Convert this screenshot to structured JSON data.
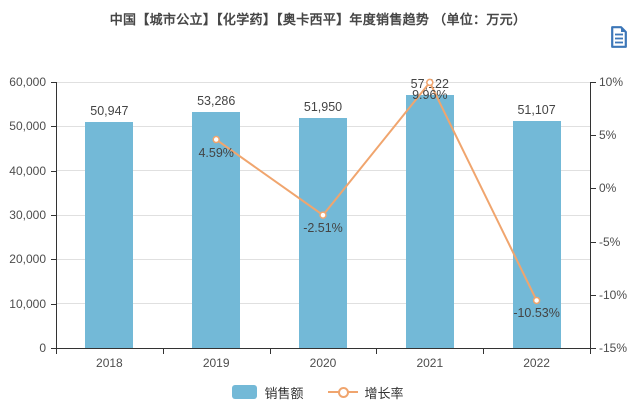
{
  "title": "中国【城市公立】【化学药】【奥卡西平】年度销售趋势 （单位：万元）",
  "toolbox": {
    "data_view_icon": "data-view"
  },
  "legend": [
    {
      "label": "销售额",
      "type": "bar"
    },
    {
      "label": "增长率",
      "type": "line"
    }
  ],
  "colors": {
    "bar": "#73b9d7",
    "line": "#f0a56e",
    "point_fill": "#ffffff",
    "grid": "#e0e0e0",
    "axis": "#333333",
    "axis_label": "#4d4d4d",
    "value_label": "#444444",
    "icon": "#3d77b8"
  },
  "chart_data": {
    "type": "bar+line",
    "title": "中国【城市公立】【化学药】【奥卡西平】年度销售趋势 （单位：万元）",
    "categories": [
      "2018",
      "2019",
      "2020",
      "2021",
      "2022"
    ],
    "series": [
      {
        "name": "销售额",
        "type": "bar",
        "values": [
          50947,
          53286,
          51950,
          57122,
          51107
        ],
        "labels": [
          "50,947",
          "53,286",
          "51,950",
          "57,122",
          "51,107"
        ],
        "color": "#73b9d7",
        "axis": "left"
      },
      {
        "name": "增长率",
        "type": "line",
        "values": [
          null,
          4.59,
          -2.51,
          9.96,
          -10.53
        ],
        "labels": [
          null,
          "4.59%",
          "-2.51%",
          "9.96%",
          "-10.53%"
        ],
        "color": "#f0a56e",
        "axis": "right"
      }
    ],
    "y_left": {
      "min": 0,
      "max": 60000,
      "step": 10000,
      "ticks": [
        {
          "v": 0,
          "label": "0"
        },
        {
          "v": 10000,
          "label": "10,000"
        },
        {
          "v": 20000,
          "label": "20,000"
        },
        {
          "v": 30000,
          "label": "30,000"
        },
        {
          "v": 40000,
          "label": "40,000"
        },
        {
          "v": 50000,
          "label": "50,000"
        },
        {
          "v": 60000,
          "label": "60,000"
        }
      ]
    },
    "y_right": {
      "min": -15,
      "max": 10,
      "step": 5,
      "ticks": [
        {
          "v": -15,
          "label": "-15%"
        },
        {
          "v": -10,
          "label": "-10%"
        },
        {
          "v": -5,
          "label": "-5%"
        },
        {
          "v": 0,
          "label": "0%"
        },
        {
          "v": 5,
          "label": "5%"
        },
        {
          "v": 10,
          "label": "10%"
        }
      ]
    },
    "grid": "horizontal-only",
    "legend_position": "bottom-center"
  }
}
